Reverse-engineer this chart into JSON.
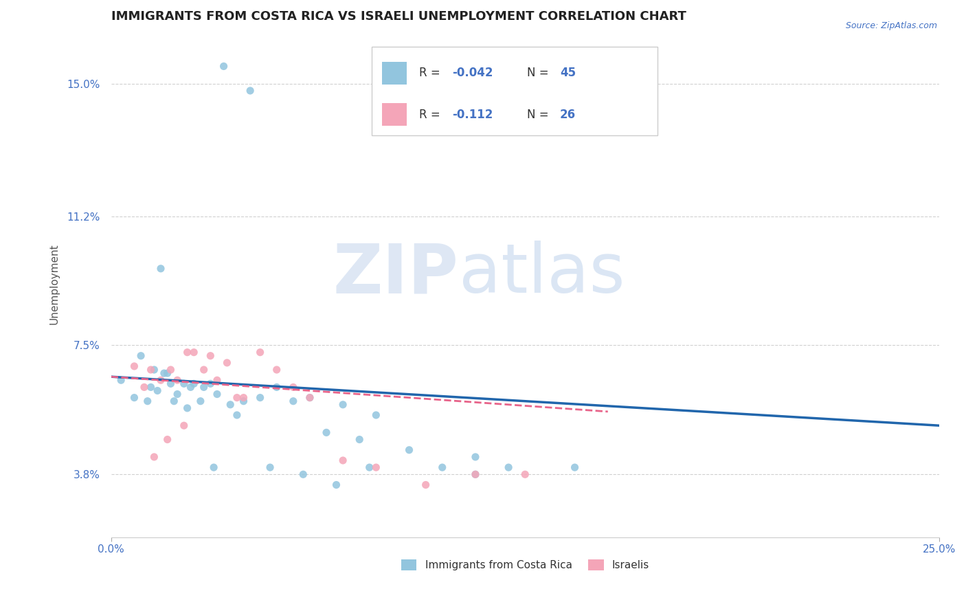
{
  "title": "IMMIGRANTS FROM COSTA RICA VS ISRAELI UNEMPLOYMENT CORRELATION CHART",
  "source_text": "Source: ZipAtlas.com",
  "ylabel": "Unemployment",
  "xlim": [
    0.0,
    0.25
  ],
  "ylim": [
    0.02,
    0.165
  ],
  "xtick_labels": [
    "0.0%",
    "25.0%"
  ],
  "ytick_values": [
    0.038,
    0.075,
    0.112,
    0.15
  ],
  "ytick_labels": [
    "3.8%",
    "7.5%",
    "11.2%",
    "15.0%"
  ],
  "r1_val": "-0.042",
  "n1_val": "45",
  "r2_val": "-0.112",
  "n2_val": "26",
  "blue_color": "#92c5de",
  "pink_color": "#f4a5b8",
  "blue_line_color": "#2166ac",
  "pink_line_color": "#e8648a",
  "axis_color": "#4472c4",
  "watermark_zip": "ZIP",
  "watermark_atlas": "atlas",
  "legend_labels": [
    "Immigrants from Costa Rica",
    "Israelis"
  ],
  "blue_scatter_x": [
    0.034,
    0.042,
    0.003,
    0.007,
    0.009,
    0.011,
    0.012,
    0.013,
    0.014,
    0.016,
    0.018,
    0.019,
    0.02,
    0.022,
    0.024,
    0.025,
    0.027,
    0.028,
    0.03,
    0.032,
    0.036,
    0.038,
    0.04,
    0.045,
    0.05,
    0.055,
    0.06,
    0.065,
    0.07,
    0.075,
    0.08,
    0.09,
    0.1,
    0.11,
    0.12,
    0.14,
    0.015,
    0.017,
    0.023,
    0.031,
    0.048,
    0.058,
    0.068,
    0.078,
    0.11
  ],
  "blue_scatter_y": [
    0.155,
    0.148,
    0.065,
    0.06,
    0.072,
    0.059,
    0.063,
    0.068,
    0.062,
    0.067,
    0.064,
    0.059,
    0.061,
    0.064,
    0.063,
    0.064,
    0.059,
    0.063,
    0.064,
    0.061,
    0.058,
    0.055,
    0.059,
    0.06,
    0.063,
    0.059,
    0.06,
    0.05,
    0.058,
    0.048,
    0.055,
    0.045,
    0.04,
    0.043,
    0.04,
    0.04,
    0.097,
    0.067,
    0.057,
    0.04,
    0.04,
    0.038,
    0.035,
    0.04,
    0.038
  ],
  "pink_scatter_x": [
    0.007,
    0.01,
    0.012,
    0.015,
    0.018,
    0.02,
    0.023,
    0.025,
    0.028,
    0.03,
    0.032,
    0.035,
    0.038,
    0.04,
    0.045,
    0.05,
    0.055,
    0.06,
    0.07,
    0.08,
    0.095,
    0.11,
    0.022,
    0.017,
    0.013,
    0.125
  ],
  "pink_scatter_y": [
    0.069,
    0.063,
    0.068,
    0.065,
    0.068,
    0.065,
    0.073,
    0.073,
    0.068,
    0.072,
    0.065,
    0.07,
    0.06,
    0.06,
    0.073,
    0.068,
    0.063,
    0.06,
    0.042,
    0.04,
    0.035,
    0.038,
    0.052,
    0.048,
    0.043,
    0.038
  ],
  "blue_trendline_x": [
    0.0,
    0.25
  ],
  "blue_trendline_y": [
    0.066,
    0.052
  ],
  "pink_trendline_x": [
    0.0,
    0.15
  ],
  "pink_trendline_y": [
    0.066,
    0.056
  ],
  "grid_color": "#d0d0d0",
  "background_color": "#ffffff",
  "title_fontsize": 13,
  "label_fontsize": 11,
  "tick_fontsize": 11
}
